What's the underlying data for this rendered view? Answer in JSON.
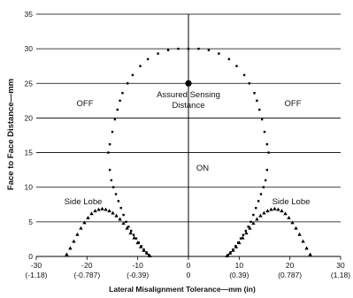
{
  "chart_data": {
    "type": "scatter",
    "title": "",
    "xlabel": "Lateral Misalignment Tolerance—mm (in)",
    "ylabel": "Face to Face Distance—mm",
    "xlim": [
      -30,
      30
    ],
    "ylim": [
      0,
      35
    ],
    "grid": "horizontal",
    "x_ticks": [
      {
        "value": -30,
        "label": "-30",
        "sub": "(-1.18)"
      },
      {
        "value": -20,
        "label": "-20",
        "sub": "(-0.787)"
      },
      {
        "value": -10,
        "label": "-10",
        "sub": "(-0.39)"
      },
      {
        "value": 0,
        "label": "0",
        "sub": "0"
      },
      {
        "value": 10,
        "label": "10",
        "sub": "(0.39)"
      },
      {
        "value": 20,
        "label": "20",
        "sub": "(0.787)"
      },
      {
        "value": 30,
        "label": "30",
        "sub": "(1.18)"
      }
    ],
    "y_ticks": [
      {
        "value": 0,
        "label": "0"
      },
      {
        "value": 5,
        "label": "5"
      },
      {
        "value": 10,
        "label": "10"
      },
      {
        "value": 15,
        "label": "15"
      },
      {
        "value": 20,
        "label": "20"
      },
      {
        "value": 25,
        "label": "25"
      },
      {
        "value": 30,
        "label": "30"
      },
      {
        "value": 35,
        "label": "35"
      }
    ],
    "series": [
      {
        "marker": "circle",
        "x": [
          0,
          2,
          4,
          6,
          8,
          9.5,
          11,
          12,
          13,
          13.5,
          14,
          14.5,
          15,
          15.5,
          15.8,
          15.5,
          15.2,
          14.8,
          14.3,
          13.8,
          13.3,
          12.8,
          12.3,
          11.8,
          11.3,
          10.8,
          10.3,
          9.8,
          9.3,
          8.8,
          8.3,
          7.8,
          -2,
          -4,
          -6,
          -8,
          -9.5,
          -11,
          -12,
          -13,
          -13.5,
          -14,
          -14.5,
          -15,
          -15.5,
          -15.8,
          -15.5,
          -15.2,
          -14.8,
          -14.3,
          -13.8,
          -13.3,
          -12.8,
          -12.3,
          -11.8,
          -11.3,
          -10.8,
          -10.3,
          -9.8,
          -9.3,
          -8.8,
          -8.3,
          -7.8
        ],
        "y": [
          30,
          30,
          29.8,
          29.3,
          28.5,
          27.5,
          26.2,
          25,
          23.6,
          22.5,
          21.2,
          19.8,
          18,
          16.2,
          15,
          12.5,
          11,
          10,
          9,
          8,
          7,
          6,
          5,
          4.3,
          3.7,
          3.1,
          2.6,
          2,
          1.5,
          1,
          0.6,
          0.2,
          30,
          29.8,
          29.3,
          28.5,
          27.5,
          26.2,
          25,
          23.6,
          22.5,
          21.2,
          19.8,
          18,
          16.2,
          15,
          12.5,
          11,
          10,
          9,
          8,
          7,
          6,
          5,
          4.3,
          3.7,
          3.1,
          2.6,
          2,
          1.5,
          1,
          0.6,
          0.2
        ]
      },
      {
        "marker": "triangle",
        "x": [
          -24,
          -23.3,
          -22.6,
          -21.9,
          -21.2,
          -20.5,
          -19.8,
          -19.1,
          -18.4,
          -17.7,
          -17,
          -16.3,
          -15.6,
          -14.9,
          -14.2,
          -13.5,
          -12.8,
          -12.1,
          -11.4,
          -10.7,
          -10,
          -9.4,
          -8.8,
          -8.2,
          -7.6,
          7.6,
          8.2,
          8.8,
          9.4,
          10,
          10.7,
          11.4,
          12.1,
          12.8,
          13.5,
          14.2,
          14.9,
          15.6,
          16.3,
          17,
          17.7,
          18.4,
          19.1,
          19.8,
          20.5,
          21.2,
          21.9,
          22.6,
          23.3,
          24
        ],
        "y": [
          0.3,
          1.2,
          2.2,
          3.2,
          4.1,
          4.9,
          5.6,
          6.2,
          6.6,
          6.8,
          6.9,
          6.8,
          6.6,
          6.3,
          5.9,
          5.4,
          4.8,
          4.1,
          3.4,
          2.7,
          2,
          1.4,
          0.9,
          0.5,
          0.1,
          0.1,
          0.5,
          0.9,
          1.4,
          2,
          2.7,
          3.4,
          4.1,
          4.8,
          5.4,
          5.9,
          6.3,
          6.6,
          6.8,
          6.9,
          6.8,
          6.6,
          6.2,
          5.6,
          4.9,
          4.1,
          3.2,
          2.2,
          1.2,
          0.3
        ]
      }
    ],
    "highlight_point": {
      "x": 0,
      "y": 25
    }
  },
  "annotations": {
    "off_left": "OFF",
    "off_right": "OFF",
    "on": "ON",
    "assured_1": "Assured Sensing",
    "assured_2": "Distance",
    "side_lobe_left": "Side Lobe",
    "side_lobe_right": "Side Lobe"
  }
}
